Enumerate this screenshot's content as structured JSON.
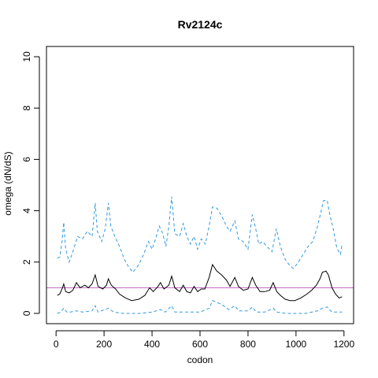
{
  "chart_data": {
    "type": "line",
    "title": "Rv2124c",
    "xlabel": "codon",
    "ylabel": "omega (dN/dS)",
    "xlim": [
      -40,
      1240
    ],
    "ylim": [
      -0.4,
      10.4
    ],
    "x_ticks": [
      0,
      200,
      400,
      600,
      800,
      1000,
      1200
    ],
    "y_ticks": [
      0,
      2,
      4,
      6,
      8,
      10
    ],
    "reference_line": {
      "y": 1,
      "color": "#c060c0"
    },
    "colors": {
      "estimate": "#000000",
      "ci": "#3399dd"
    },
    "series": [
      {
        "role": "upper_ci",
        "style": "dashed",
        "points": [
          [
            5,
            2.15
          ],
          [
            15,
            2.2
          ],
          [
            25,
            2.8
          ],
          [
            32,
            3.55
          ],
          [
            40,
            2.5
          ],
          [
            55,
            2.0
          ],
          [
            70,
            2.4
          ],
          [
            90,
            3.0
          ],
          [
            110,
            2.9
          ],
          [
            130,
            3.2
          ],
          [
            150,
            3.0
          ],
          [
            163,
            4.3
          ],
          [
            172,
            3.2
          ],
          [
            190,
            2.8
          ],
          [
            205,
            3.3
          ],
          [
            218,
            4.3
          ],
          [
            228,
            3.4
          ],
          [
            245,
            3.0
          ],
          [
            265,
            2.6
          ],
          [
            285,
            2.1
          ],
          [
            300,
            1.85
          ],
          [
            320,
            1.6
          ],
          [
            345,
            1.9
          ],
          [
            365,
            2.3
          ],
          [
            385,
            2.8
          ],
          [
            400,
            2.5
          ],
          [
            415,
            2.9
          ],
          [
            430,
            3.4
          ],
          [
            445,
            3.1
          ],
          [
            458,
            2.6
          ],
          [
            470,
            3.4
          ],
          [
            482,
            4.55
          ],
          [
            495,
            3.1
          ],
          [
            515,
            3.0
          ],
          [
            530,
            3.5
          ],
          [
            545,
            3.0
          ],
          [
            560,
            2.7
          ],
          [
            575,
            3.0
          ],
          [
            590,
            2.5
          ],
          [
            605,
            2.9
          ],
          [
            622,
            2.7
          ],
          [
            638,
            3.4
          ],
          [
            652,
            4.15
          ],
          [
            670,
            4.1
          ],
          [
            690,
            3.8
          ],
          [
            710,
            3.4
          ],
          [
            725,
            3.2
          ],
          [
            745,
            3.6
          ],
          [
            760,
            2.9
          ],
          [
            780,
            2.8
          ],
          [
            800,
            2.5
          ],
          [
            818,
            3.85
          ],
          [
            832,
            3.3
          ],
          [
            845,
            2.7
          ],
          [
            860,
            2.8
          ],
          [
            880,
            2.6
          ],
          [
            900,
            2.4
          ],
          [
            918,
            3.3
          ],
          [
            935,
            2.6
          ],
          [
            955,
            2.1
          ],
          [
            975,
            1.85
          ],
          [
            990,
            1.75
          ],
          [
            1010,
            2.0
          ],
          [
            1030,
            2.3
          ],
          [
            1050,
            2.6
          ],
          [
            1070,
            2.8
          ],
          [
            1090,
            3.4
          ],
          [
            1105,
            4.0
          ],
          [
            1115,
            4.4
          ],
          [
            1130,
            4.4
          ],
          [
            1140,
            3.9
          ],
          [
            1155,
            3.3
          ],
          [
            1170,
            2.55
          ],
          [
            1185,
            2.3
          ],
          [
            1192,
            2.7
          ]
        ]
      },
      {
        "role": "estimate",
        "style": "solid",
        "points": [
          [
            5,
            0.7
          ],
          [
            15,
            0.75
          ],
          [
            25,
            0.95
          ],
          [
            32,
            1.15
          ],
          [
            40,
            0.85
          ],
          [
            55,
            0.8
          ],
          [
            70,
            0.9
          ],
          [
            85,
            1.2
          ],
          [
            100,
            1.0
          ],
          [
            120,
            1.1
          ],
          [
            135,
            1.0
          ],
          [
            150,
            1.15
          ],
          [
            163,
            1.5
          ],
          [
            175,
            1.05
          ],
          [
            195,
            0.95
          ],
          [
            210,
            1.1
          ],
          [
            218,
            1.35
          ],
          [
            230,
            1.1
          ],
          [
            248,
            0.95
          ],
          [
            265,
            0.75
          ],
          [
            290,
            0.6
          ],
          [
            315,
            0.5
          ],
          [
            345,
            0.55
          ],
          [
            370,
            0.7
          ],
          [
            390,
            1.0
          ],
          [
            405,
            0.85
          ],
          [
            425,
            1.05
          ],
          [
            435,
            1.2
          ],
          [
            450,
            0.95
          ],
          [
            470,
            1.1
          ],
          [
            482,
            1.45
          ],
          [
            495,
            1.0
          ],
          [
            515,
            0.85
          ],
          [
            530,
            1.1
          ],
          [
            545,
            0.85
          ],
          [
            560,
            0.8
          ],
          [
            575,
            1.05
          ],
          [
            590,
            0.85
          ],
          [
            605,
            0.95
          ],
          [
            620,
            0.95
          ],
          [
            638,
            1.4
          ],
          [
            652,
            1.9
          ],
          [
            670,
            1.65
          ],
          [
            690,
            1.5
          ],
          [
            710,
            1.3
          ],
          [
            725,
            1.05
          ],
          [
            745,
            1.4
          ],
          [
            760,
            1.05
          ],
          [
            780,
            0.9
          ],
          [
            800,
            0.95
          ],
          [
            818,
            1.4
          ],
          [
            832,
            1.1
          ],
          [
            850,
            0.85
          ],
          [
            870,
            0.85
          ],
          [
            890,
            0.9
          ],
          [
            905,
            1.2
          ],
          [
            920,
            0.85
          ],
          [
            935,
            0.7
          ],
          [
            955,
            0.55
          ],
          [
            975,
            0.5
          ],
          [
            995,
            0.5
          ],
          [
            1020,
            0.6
          ],
          [
            1045,
            0.75
          ],
          [
            1065,
            0.9
          ],
          [
            1085,
            1.1
          ],
          [
            1100,
            1.35
          ],
          [
            1110,
            1.6
          ],
          [
            1125,
            1.65
          ],
          [
            1135,
            1.5
          ],
          [
            1150,
            1.0
          ],
          [
            1165,
            0.75
          ],
          [
            1180,
            0.6
          ],
          [
            1192,
            0.65
          ]
        ]
      },
      {
        "role": "lower_ci",
        "style": "dashed",
        "points": [
          [
            5,
            0.0
          ],
          [
            20,
            0.05
          ],
          [
            32,
            0.2
          ],
          [
            45,
            0.05
          ],
          [
            60,
            0.05
          ],
          [
            85,
            0.1
          ],
          [
            110,
            0.05
          ],
          [
            150,
            0.1
          ],
          [
            163,
            0.3
          ],
          [
            175,
            0.05
          ],
          [
            218,
            0.2
          ],
          [
            240,
            0.05
          ],
          [
            280,
            0.0
          ],
          [
            350,
            0.0
          ],
          [
            400,
            0.05
          ],
          [
            435,
            0.15
          ],
          [
            455,
            0.05
          ],
          [
            482,
            0.3
          ],
          [
            495,
            0.05
          ],
          [
            540,
            0.05
          ],
          [
            600,
            0.05
          ],
          [
            638,
            0.2
          ],
          [
            652,
            0.5
          ],
          [
            665,
            0.45
          ],
          [
            690,
            0.35
          ],
          [
            720,
            0.15
          ],
          [
            745,
            0.3
          ],
          [
            760,
            0.1
          ],
          [
            800,
            0.1
          ],
          [
            818,
            0.25
          ],
          [
            835,
            0.05
          ],
          [
            870,
            0.05
          ],
          [
            905,
            0.2
          ],
          [
            920,
            0.05
          ],
          [
            960,
            0.0
          ],
          [
            1040,
            0.0
          ],
          [
            1090,
            0.1
          ],
          [
            1110,
            0.2
          ],
          [
            1130,
            0.25
          ],
          [
            1150,
            0.05
          ],
          [
            1192,
            0.05
          ]
        ]
      }
    ]
  }
}
